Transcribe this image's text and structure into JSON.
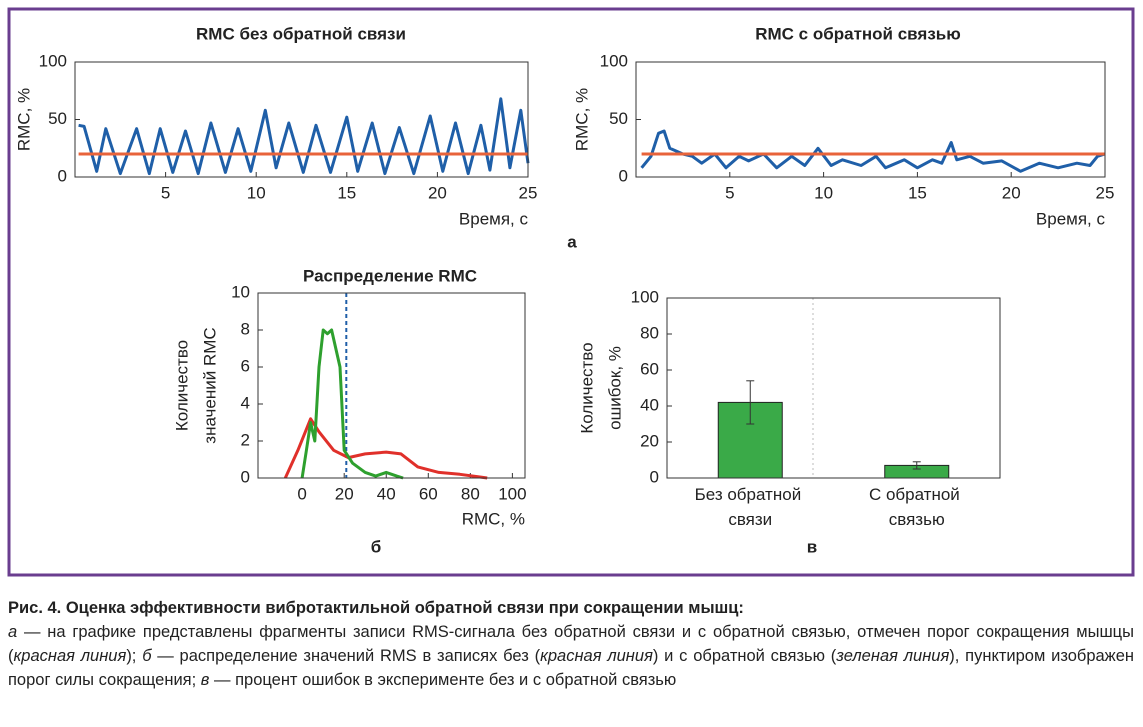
{
  "chart_data": [
    {
      "type": "line",
      "title": "RMC без обратной связи",
      "ylabel": [
        "RMC, %"
      ],
      "xlabel": "Время, с",
      "panel": "а",
      "xlim": [
        0,
        25
      ],
      "ylim": [
        0,
        100
      ],
      "xticks": [
        5,
        10,
        15,
        20,
        25
      ],
      "yticks": [
        0,
        50,
        100
      ],
      "series": [
        {
          "color": "#1f5fa8",
          "x": [
            0.2,
            0.5,
            1.2,
            1.7,
            2.5,
            3.4,
            4.1,
            4.7,
            5.4,
            6.1,
            6.8,
            7.5,
            8.3,
            9.0,
            9.7,
            10.5,
            11.1,
            11.8,
            12.6,
            13.3,
            14.1,
            15.0,
            15.6,
            16.4,
            17.1,
            17.9,
            18.7,
            19.6,
            20.3,
            21.0,
            21.7,
            22.4,
            22.9,
            23.5,
            24.0,
            24.6,
            25.0
          ],
          "values": [
            45,
            44,
            5,
            42,
            3,
            42,
            3,
            42,
            4,
            40,
            3,
            47,
            4,
            42,
            5,
            58,
            8,
            47,
            4,
            45,
            4,
            52,
            5,
            47,
            3,
            43,
            3,
            53,
            5,
            47,
            3,
            45,
            6,
            68,
            8,
            58,
            12
          ]
        },
        {
          "color": "#e8633a",
          "x": [
            0.2,
            25
          ],
          "values": [
            20,
            20
          ]
        }
      ]
    },
    {
      "type": "line",
      "title": "RMC с обратной связью",
      "ylabel": [
        "RMC, %"
      ],
      "xlabel": "Время, с",
      "xlim": [
        0,
        25
      ],
      "ylim": [
        0,
        100
      ],
      "xticks": [
        5,
        10,
        15,
        20,
        25
      ],
      "yticks": [
        0,
        50,
        100
      ],
      "series": [
        {
          "color": "#1f5fa8",
          "x": [
            0.3,
            0.8,
            1.2,
            1.5,
            1.8,
            2.5,
            3,
            3.5,
            4.2,
            4.8,
            5.5,
            6,
            6.8,
            7.5,
            8.3,
            9,
            9.7,
            10.4,
            11,
            12,
            12.8,
            13.3,
            14.3,
            15,
            15.8,
            16.3,
            16.8,
            17.1,
            17.8,
            18.5,
            19.5,
            20.5,
            21.5,
            22.5,
            23.5,
            24.2,
            24.6,
            25
          ],
          "values": [
            8,
            18,
            38,
            40,
            25,
            20,
            18,
            12,
            20,
            8,
            18,
            14,
            20,
            8,
            18,
            10,
            25,
            10,
            15,
            10,
            18,
            8,
            15,
            8,
            15,
            12,
            30,
            15,
            18,
            12,
            14,
            5,
            12,
            8,
            12,
            10,
            18,
            20
          ]
        },
        {
          "color": "#e8633a",
          "x": [
            0.3,
            25
          ],
          "values": [
            20,
            20
          ]
        }
      ]
    },
    {
      "type": "line",
      "title": "Распределение RMC",
      "ylabel": [
        "Количество",
        "значений RMC"
      ],
      "xlabel": "RMC, %",
      "panel": "б",
      "xlim": [
        -21,
        106
      ],
      "ylim": [
        0,
        10
      ],
      "xticks": [
        0,
        20,
        40,
        60,
        80,
        100
      ],
      "yticks": [
        0,
        2,
        4,
        6,
        8,
        10
      ],
      "vline": 21,
      "vline_color": "#1f5fa8",
      "series": [
        {
          "color": "#e0302a",
          "x": [
            -8,
            -2,
            4,
            8,
            15,
            22,
            30,
            40,
            47,
            55,
            65,
            75,
            85,
            88
          ],
          "values": [
            0,
            1.5,
            3.2,
            2.5,
            1.5,
            1.1,
            1.3,
            1.4,
            1.3,
            0.6,
            0.3,
            0.2,
            0.05,
            0
          ]
        },
        {
          "color": "#2ea02e",
          "x": [
            0,
            2,
            4,
            6,
            8,
            10,
            12,
            14,
            18,
            20,
            24,
            30,
            35,
            40,
            45,
            48
          ],
          "values": [
            0,
            1.5,
            3,
            2,
            6,
            8,
            7.8,
            8,
            6,
            1.5,
            0.8,
            0.3,
            0.1,
            0.3,
            0.1,
            0
          ]
        }
      ]
    },
    {
      "type": "bar",
      "ylabel": [
        "Количество",
        "ошибок, %"
      ],
      "panel": "в",
      "categories": [
        "Без обратной связи",
        "С обратной связью"
      ],
      "values": [
        42,
        7
      ],
      "errors": [
        12,
        2
      ],
      "color": "#3aaa48",
      "ylim": [
        0,
        100
      ],
      "yticks": [
        0,
        20,
        40,
        60,
        80,
        100
      ]
    }
  ],
  "caption": {
    "title": "Рис. 4. Оценка эффективности вибротактильной обратной связи при сокращении мышц:",
    "segments": [
      {
        "text": "а",
        "italic": true
      },
      {
        "text": " — на графике представлены фрагменты записи RMS-сигнала без обратной связи и с обратной связью, отмечен порог сокращения мышцы (",
        "italic": false
      },
      {
        "text": "красная линия",
        "italic": true
      },
      {
        "text": "); ",
        "italic": false
      },
      {
        "text": "б",
        "italic": true
      },
      {
        "text": " — распределение значений RMS в записях без (",
        "italic": false
      },
      {
        "text": "красная линия",
        "italic": true
      },
      {
        "text": ") и с обратной свя­зью (",
        "italic": false
      },
      {
        "text": "зеленая линия",
        "italic": true
      },
      {
        "text": "), пунктиром изображен порог силы сокращения; ",
        "italic": false
      },
      {
        "text": "в",
        "italic": true
      },
      {
        "text": " — процент ошибок в эксперименте без и с обратной связью",
        "italic": false
      }
    ]
  }
}
